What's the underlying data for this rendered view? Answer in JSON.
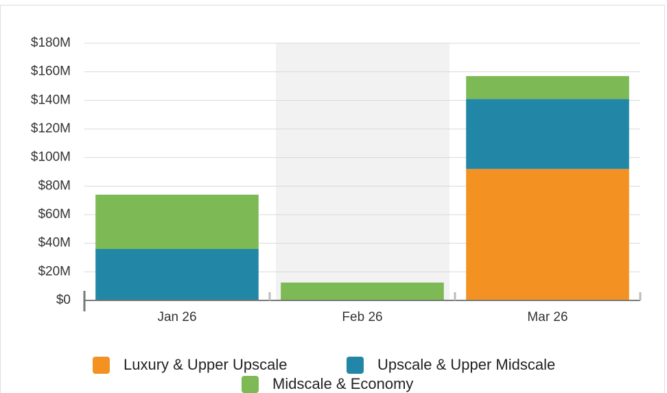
{
  "chart_data": {
    "type": "stacked_bar",
    "categories": [
      "Jan 26",
      "Feb 26",
      "Mar 26"
    ],
    "series": [
      {
        "name": "Luxury & Upper Upscale",
        "color": "#f39223",
        "values": [
          0,
          0,
          92000000
        ]
      },
      {
        "name": "Upscale & Upper Midscale",
        "color": "#2286a6",
        "values": [
          36000000,
          0,
          49000000
        ]
      },
      {
        "name": "Midscale & Economy",
        "color": "#7db955",
        "values": [
          38000000,
          12500000,
          16000000
        ]
      }
    ],
    "ylim": [
      0,
      180000000
    ],
    "yticks": [
      {
        "value": 0,
        "label": "$0"
      },
      {
        "value": 20000000,
        "label": "$20M"
      },
      {
        "value": 40000000,
        "label": "$40M"
      },
      {
        "value": 60000000,
        "label": "$60M"
      },
      {
        "value": 80000000,
        "label": "$80M"
      },
      {
        "value": 100000000,
        "label": "$100M"
      },
      {
        "value": 120000000,
        "label": "$120M"
      },
      {
        "value": 140000000,
        "label": "$140M"
      },
      {
        "value": 160000000,
        "label": "$160M"
      },
      {
        "value": 180000000,
        "label": "$180M"
      }
    ],
    "grid": true
  }
}
